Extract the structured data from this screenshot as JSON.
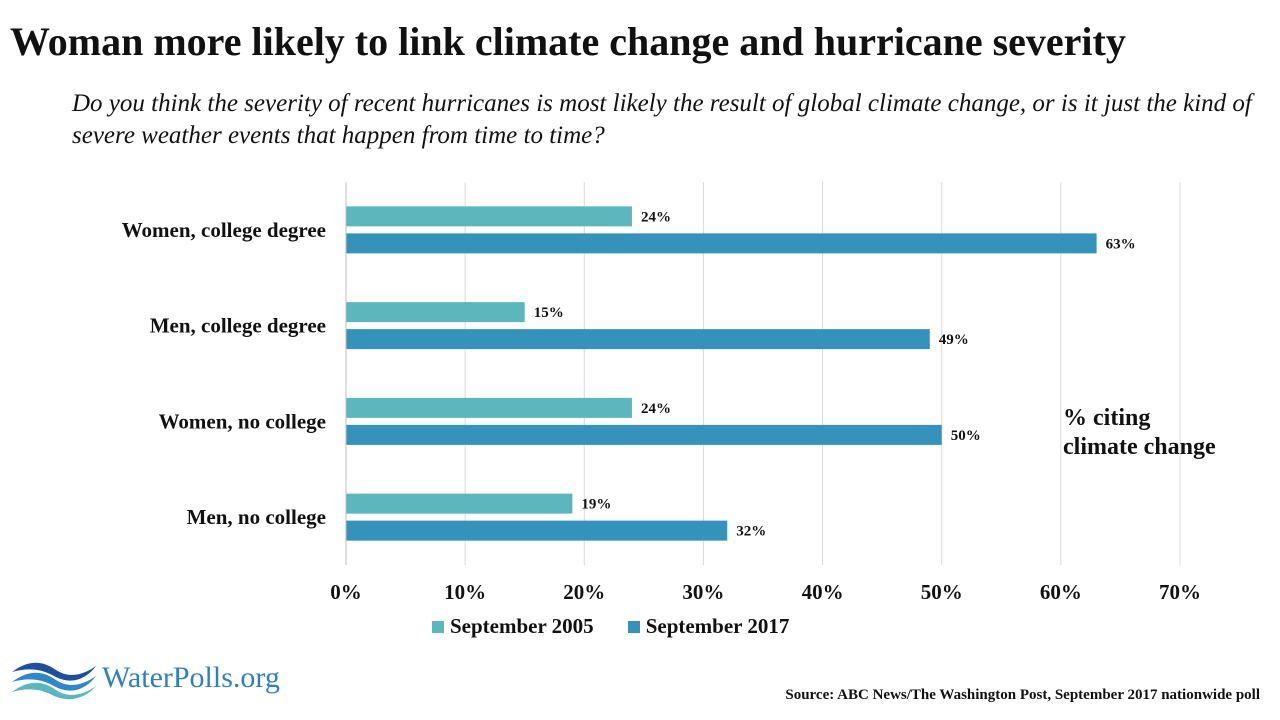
{
  "title": "Woman more likely to link climate change and hurricane severity",
  "subtitle": "Do you think the severity of recent hurricanes is most likely the result of global climate change, or is it just the kind of severe weather events that happen from time to time?",
  "annotation": "% citing\nclimate change",
  "source": "Source: ABC News/The Washington Post, September 2017 nationwide poll",
  "logo": {
    "text": "WaterPolls.org",
    "icon": "waves-icon"
  },
  "colors": {
    "september_2005": "#5bb6be",
    "september_2017": "#3593bb",
    "grid": "#d9d9d9",
    "text": "#111111",
    "logo": "#2f7fc1"
  },
  "chart_data": {
    "type": "bar",
    "orientation": "horizontal",
    "title": "Woman more likely to link climate change and hurricane severity",
    "categories": [
      "Women, college degree",
      "Men, college degree",
      "Women, no college",
      "Men, no college"
    ],
    "series": [
      {
        "name": "September 2005",
        "values": [
          24,
          15,
          24,
          19
        ],
        "labels": [
          "24%",
          "15%",
          "24%",
          "19%"
        ]
      },
      {
        "name": "September 2017",
        "values": [
          63,
          49,
          50,
          32
        ],
        "labels": [
          "63%",
          "49%",
          "50%",
          "32%"
        ]
      }
    ],
    "xlim": [
      0,
      70
    ],
    "xticks": [
      "0%",
      "10%",
      "20%",
      "30%",
      "40%",
      "50%",
      "60%",
      "70%"
    ],
    "xlabel": "",
    "ylabel": "",
    "grid": "vertical",
    "legend": "bottom"
  }
}
